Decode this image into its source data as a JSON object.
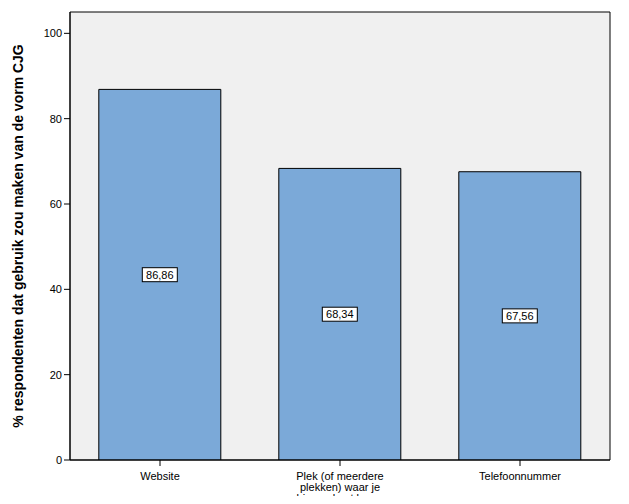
{
  "chart_data": {
    "type": "bar",
    "y_label": "% respondenten dat gebruik zou maken van de vorm CJG",
    "categories": [
      "Website",
      "Plek (of meerdere plekken) waar je binnen kunt lopen",
      "Telefoonnummer"
    ],
    "values": [
      86.86,
      68.34,
      67.56
    ],
    "value_labels": [
      "86,86",
      "68,34",
      "67,56"
    ],
    "color": "#7ba9d8",
    "ylim": [
      0,
      105
    ],
    "yticks": [
      0,
      20,
      40,
      60,
      80,
      100
    ],
    "grid": false,
    "data_labels": true
  }
}
